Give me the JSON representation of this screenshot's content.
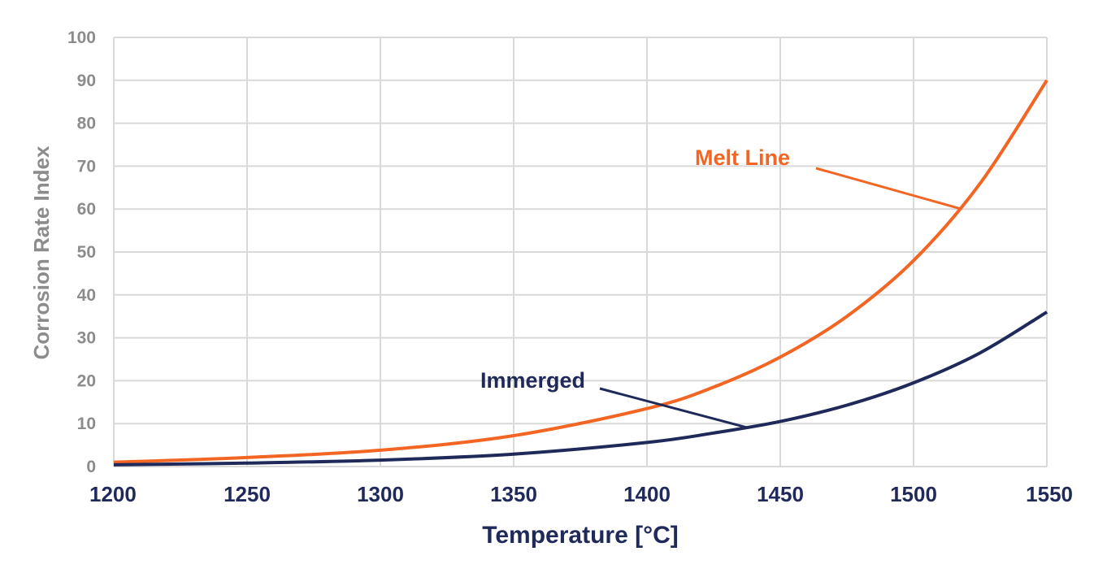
{
  "chart_data": {
    "type": "line",
    "xlabel": "Temperature [°C]",
    "ylabel": "Corrosion Rate Index",
    "xlim": [
      1200,
      1550
    ],
    "ylim": [
      0,
      100
    ],
    "x_ticks": [
      "1200",
      "1250",
      "1300",
      "1350",
      "1400",
      "1450",
      "1500",
      "1550"
    ],
    "y_ticks": [
      "0",
      "10",
      "20",
      "30",
      "40",
      "50",
      "60",
      "70",
      "80",
      "90",
      "100"
    ],
    "grid": true,
    "series": [
      {
        "name": "Melt Line",
        "color": "#f26522",
        "x": [
          1200,
          1250,
          1300,
          1350,
          1400,
          1425,
          1450,
          1475,
          1500,
          1525,
          1550
        ],
        "y": [
          1.0,
          2.1,
          3.8,
          7.2,
          13.5,
          18.5,
          25.5,
          35.0,
          48.0,
          66.0,
          90.0
        ]
      },
      {
        "name": "Immerged",
        "color": "#1f2a5a",
        "x": [
          1200,
          1250,
          1300,
          1350,
          1400,
          1425,
          1450,
          1475,
          1500,
          1525,
          1550
        ],
        "y": [
          0.4,
          0.8,
          1.5,
          2.9,
          5.6,
          7.8,
          10.5,
          14.3,
          19.5,
          26.5,
          36.0
        ]
      }
    ],
    "annotations": [
      {
        "text": "Melt Line",
        "color": "#f26522",
        "series": 0,
        "point_x": 1518,
        "point_y": 60
      },
      {
        "text": "Immerged",
        "color": "#1f2a5a",
        "series": 1,
        "point_x": 1438,
        "point_y": 9
      }
    ]
  }
}
